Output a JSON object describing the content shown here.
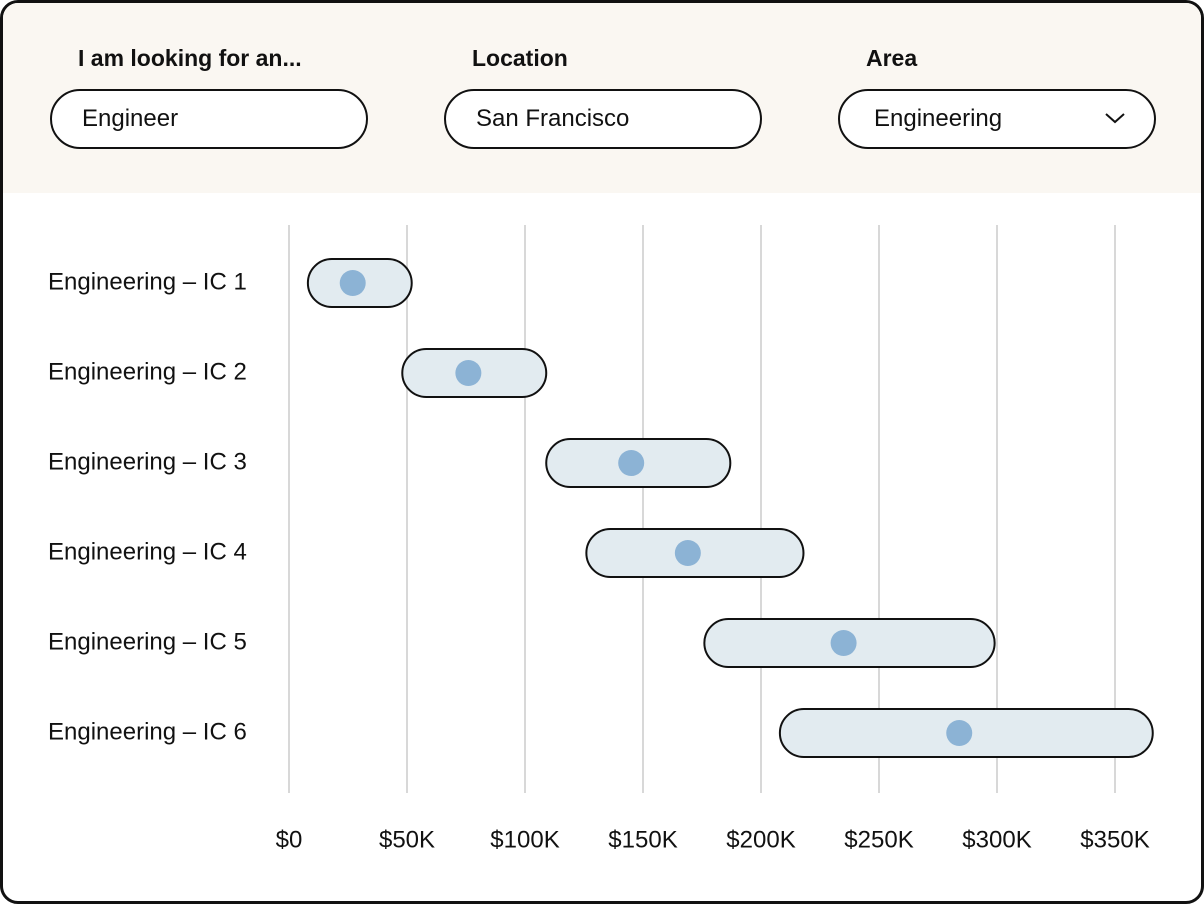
{
  "filters": [
    {
      "label": "I am looking for an...",
      "value": "Engineer"
    },
    {
      "label": "Location",
      "value": "San Francisco"
    },
    {
      "label": "Area",
      "value": "Engineering"
    }
  ],
  "chart_data": {
    "type": "range",
    "categories": [
      "Engineering – IC 1",
      "Engineering – IC 2",
      "Engineering – IC 3",
      "Engineering – IC 4",
      "Engineering – IC 5",
      "Engineering – IC 6"
    ],
    "low": [
      8,
      48,
      109,
      126,
      176,
      208
    ],
    "high": [
      52,
      109,
      187,
      218,
      299,
      366
    ],
    "values": [
      27,
      76,
      145,
      169,
      235,
      284
    ],
    "range_color": "#e2ebf0",
    "color": "#8cb3d5",
    "xlim": [
      0,
      350
    ],
    "xticks": [
      {
        "value": 0,
        "label": "$0"
      },
      {
        "value": 50,
        "label": "$50K"
      },
      {
        "value": 100,
        "label": "$100K"
      },
      {
        "value": 150,
        "label": "$150K"
      },
      {
        "value": 200,
        "label": "$200K"
      },
      {
        "value": 250,
        "label": "$250K"
      },
      {
        "value": 300,
        "label": "$300K"
      },
      {
        "value": 350,
        "label": "$350K"
      }
    ],
    "grid": true
  }
}
